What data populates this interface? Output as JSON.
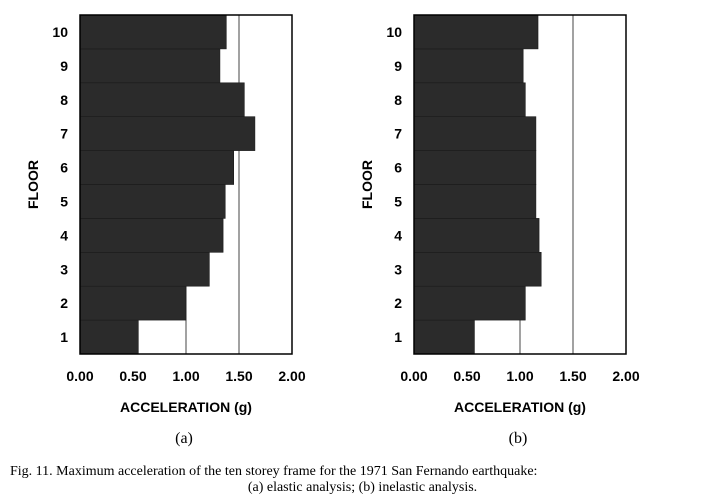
{
  "chart_data": [
    {
      "type": "bar",
      "orientation": "horizontal",
      "panel_label": "(a)",
      "xlabel": "ACCELERATION (g)",
      "ylabel": "FLOOR",
      "xlim": [
        0,
        2.0
      ],
      "xticks": [
        "0.00",
        "0.50",
        "1.00",
        "1.50",
        "2.00"
      ],
      "categories": [
        "1",
        "2",
        "3",
        "4",
        "5",
        "6",
        "7",
        "8",
        "9",
        "10"
      ],
      "values": [
        0.55,
        1.0,
        1.22,
        1.35,
        1.37,
        1.45,
        1.65,
        1.55,
        1.32,
        1.38
      ],
      "grid": "vertical",
      "bar_color": "#2b2b2b"
    },
    {
      "type": "bar",
      "orientation": "horizontal",
      "panel_label": "(b)",
      "xlabel": "ACCELERATION (g)",
      "ylabel": "FLOOR",
      "xlim": [
        0,
        2.0
      ],
      "xticks": [
        "0.00",
        "0.50",
        "1.00",
        "1.50",
        "2.00"
      ],
      "categories": [
        "1",
        "2",
        "3",
        "4",
        "5",
        "6",
        "7",
        "8",
        "9",
        "10"
      ],
      "values": [
        0.57,
        1.05,
        1.2,
        1.18,
        1.15,
        1.15,
        1.15,
        1.05,
        1.03,
        1.17
      ],
      "grid": "vertical",
      "bar_color": "#2b2b2b"
    }
  ],
  "caption": {
    "line1": "Fig. 11. Maximum acceleration of the ten storey frame for the 1971 San Fernando earthquake:",
    "line2": "(a) elastic analysis; (b) inelastic analysis."
  }
}
